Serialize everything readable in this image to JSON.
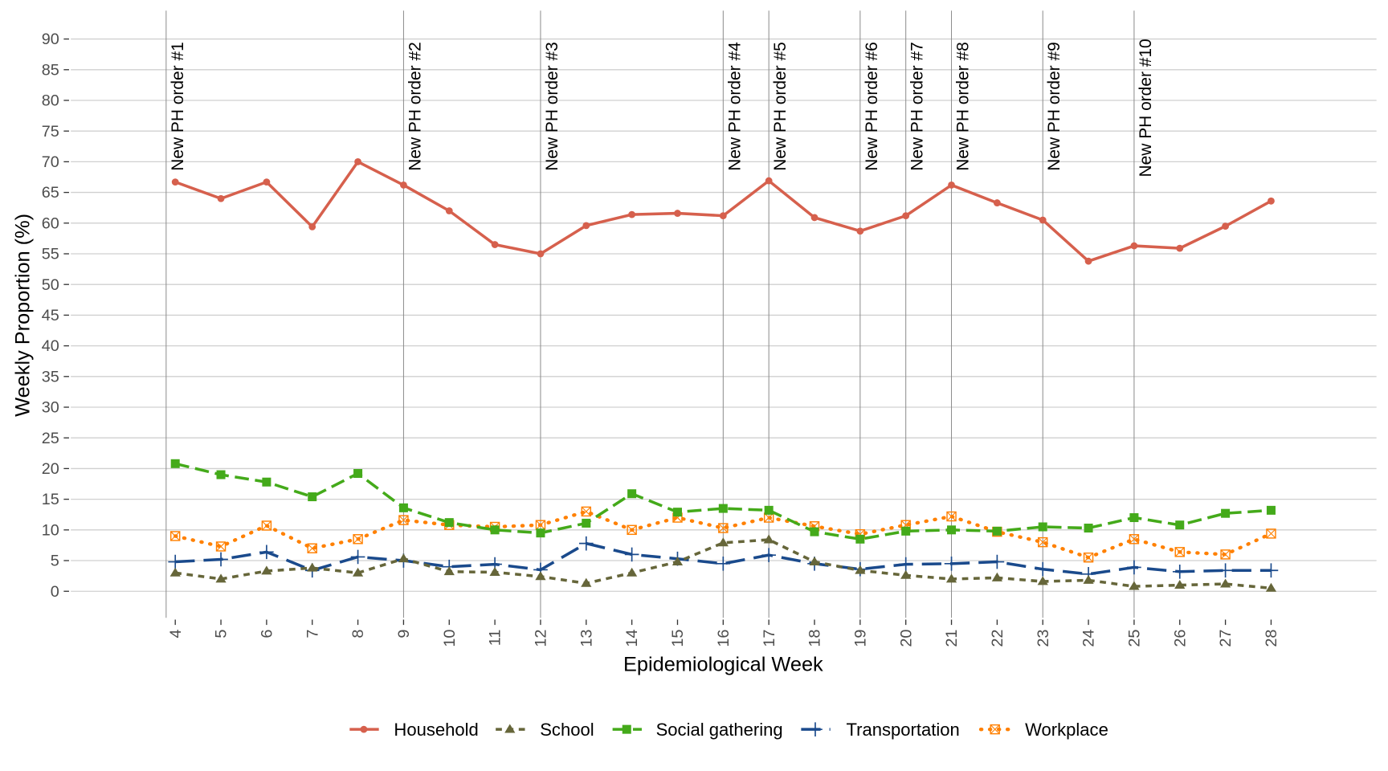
{
  "chart_data": {
    "type": "line",
    "title": "",
    "xlabel": "Epidemiological Week",
    "ylabel": "Weekly Proportion (%)",
    "x": [
      4,
      5,
      6,
      7,
      8,
      9,
      10,
      11,
      12,
      13,
      14,
      15,
      16,
      17,
      18,
      19,
      20,
      21,
      22,
      23,
      24,
      25,
      26,
      27,
      28
    ],
    "ylim": [
      -4,
      95
    ],
    "yticks": [
      0,
      5,
      10,
      15,
      20,
      25,
      30,
      35,
      40,
      45,
      50,
      55,
      60,
      65,
      70,
      75,
      80,
      85,
      90
    ],
    "grid": true,
    "legend_position": "bottom",
    "series": [
      {
        "name": "Household",
        "color": "#d6604d",
        "marker": "circle",
        "dash": "solid",
        "values": [
          66.7,
          64,
          66.7,
          59.4,
          70,
          66.2,
          62,
          56.5,
          55,
          59.6,
          61.4,
          61.6,
          61.2,
          66.9,
          60.9,
          58.7,
          61.2,
          66.2,
          63.3,
          60.5,
          53.8,
          56.3,
          55.9,
          59.5,
          63.6
        ]
      },
      {
        "name": "School",
        "color": "#66663a",
        "marker": "triangle",
        "dash": "dashed",
        "values": [
          3,
          2,
          3.3,
          3.8,
          3,
          5.3,
          3.2,
          3.1,
          2.4,
          1.3,
          3,
          4.8,
          7.9,
          8.4,
          4.8,
          3.4,
          2.6,
          2,
          2.2,
          1.6,
          1.8,
          0.8,
          1,
          1.2,
          0.5
        ]
      },
      {
        "name": "Social gathering",
        "color": "#44aa1a",
        "marker": "square",
        "dash": "longdash",
        "values": [
          20.8,
          19,
          17.8,
          15.4,
          19.2,
          13.6,
          11.2,
          10,
          9.5,
          11.1,
          15.9,
          12.9,
          13.5,
          13.2,
          9.7,
          8.5,
          9.8,
          10,
          9.8,
          10.5,
          10.3,
          12,
          10.8,
          12.7,
          13.2
        ]
      },
      {
        "name": "Transportation",
        "color": "#1a4a8c",
        "marker": "plus",
        "dash": "twodash",
        "values": [
          4.8,
          5.2,
          6.4,
          3.4,
          5.6,
          5,
          4,
          4.4,
          3.5,
          7.8,
          6,
          5.3,
          4.5,
          5.9,
          4.5,
          3.6,
          4.4,
          4.5,
          4.8,
          3.6,
          2.8,
          3.9,
          3.2,
          3.4,
          3.4
        ]
      },
      {
        "name": "Workplace",
        "color": "#ff8000",
        "marker": "boxed-x",
        "dash": "dotted",
        "values": [
          9,
          7.3,
          10.7,
          7,
          8.5,
          11.6,
          10.8,
          10.5,
          10.8,
          13,
          10,
          12,
          10.3,
          12,
          10.6,
          9.3,
          10.8,
          12.2,
          9.7,
          8,
          5.5,
          8.5,
          6.4,
          6,
          9.4
        ]
      }
    ],
    "annotations": [
      {
        "week": 3.8,
        "label": "New PH order #1"
      },
      {
        "week": 9,
        "label": "New PH order #2"
      },
      {
        "week": 12,
        "label": "New PH order #3"
      },
      {
        "week": 16,
        "label": "New PH order #4"
      },
      {
        "week": 17,
        "label": "New PH order #5"
      },
      {
        "week": 19,
        "label": "New PH order #6"
      },
      {
        "week": 20,
        "label": "New PH order #7"
      },
      {
        "week": 21,
        "label": "New PH order #8"
      },
      {
        "week": 23,
        "label": "New PH order #9"
      },
      {
        "week": 25,
        "label": "New PH order #10"
      }
    ]
  }
}
